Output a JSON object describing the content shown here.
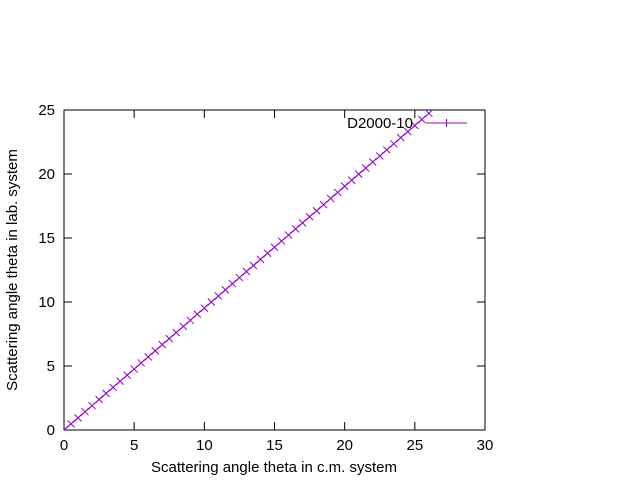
{
  "chart_data": {
    "type": "line",
    "title": "",
    "xlabel": "Scattering angle theta in c.m. system",
    "ylabel": "Scattering angle theta in lab. system",
    "xlim": [
      0,
      30
    ],
    "ylim": [
      0,
      25
    ],
    "xticks": [
      0,
      5,
      10,
      15,
      20,
      25,
      30
    ],
    "yticks": [
      0,
      5,
      10,
      15,
      20,
      25
    ],
    "grid": false,
    "legend_position": "top-right",
    "series": [
      {
        "name": "D2000-10",
        "color": "#9400d3",
        "marker": "cross",
        "x": [
          0.0,
          0.5,
          1.0,
          1.5,
          2.0,
          2.5,
          3.0,
          3.5,
          4.0,
          4.5,
          5.0,
          5.5,
          6.0,
          6.5,
          7.0,
          7.5,
          8.0,
          8.5,
          9.0,
          9.5,
          10.0,
          10.5,
          11.0,
          11.5,
          12.0,
          12.5,
          13.0,
          13.5,
          14.0,
          14.5,
          15.0,
          15.5,
          16.0,
          16.5,
          17.0,
          17.5,
          18.0,
          18.5,
          19.0,
          19.5,
          20.0,
          20.5,
          21.0,
          21.5,
          22.0,
          22.5,
          23.0,
          23.5,
          24.0,
          24.5,
          25.0,
          25.5,
          26.0
        ],
        "y": [
          0.0,
          0.48,
          0.95,
          1.43,
          1.9,
          2.38,
          2.86,
          3.33,
          3.81,
          4.29,
          4.76,
          5.24,
          5.71,
          6.19,
          6.67,
          7.14,
          7.62,
          8.09,
          8.57,
          9.05,
          9.52,
          10.0,
          10.47,
          10.95,
          11.43,
          11.9,
          12.38,
          12.85,
          13.33,
          13.81,
          14.28,
          14.76,
          15.23,
          15.71,
          16.18,
          16.66,
          17.13,
          17.61,
          18.09,
          18.56,
          19.04,
          19.51,
          19.99,
          20.46,
          20.94,
          21.41,
          21.89,
          22.36,
          22.84,
          23.31,
          23.79,
          24.26,
          24.74
        ]
      }
    ]
  }
}
